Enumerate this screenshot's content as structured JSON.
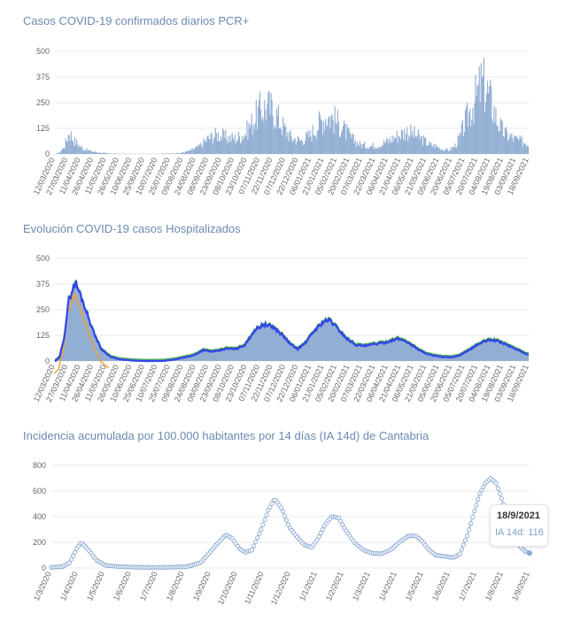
{
  "colors": {
    "title": "#6b8ab0",
    "bars": "#94b0d4",
    "hosp_area": "#93aed3",
    "hosp_uci": "#3344ee",
    "hosp_green": "#2f9e44",
    "hosp_orange": "#f0a030",
    "ia_line": "#8aaad2",
    "grid": "#e9e9e9"
  },
  "chart_data": [
    {
      "type": "bar",
      "title": "Casos COVID-19 confirmados diarios PCR+",
      "ylim": [
        0,
        500
      ],
      "yticks": [
        0,
        125,
        250,
        375,
        500
      ],
      "categories": [
        "12/03/2020",
        "27/03/2020",
        "11/04/2020",
        "26/04/2020",
        "11/05/2020",
        "26/05/2020",
        "10/06/2020",
        "25/06/2020",
        "10/07/2020",
        "25/07/2020",
        "09/08/2020",
        "24/08/2020",
        "08/09/2020",
        "23/09/2020",
        "08/10/2020",
        "23/10/2020",
        "07/11/2020",
        "22/11/2020",
        "07/12/2020",
        "22/12/2020",
        "06/01/2021",
        "21/01/2021",
        "05/02/2021",
        "20/02/2021",
        "07/03/2021",
        "22/03/2021",
        "06/04/2021",
        "21/04/2021",
        "06/05/2021",
        "21/05/2021",
        "05/06/2021",
        "20/06/2021",
        "05/07/2021",
        "20/07/2021",
        "04/08/2021",
        "19/08/2021",
        "03/09/2021",
        "18/09/2021"
      ],
      "anchors": [
        [
          0,
          0
        ],
        [
          5,
          8
        ],
        [
          10,
          40
        ],
        [
          15,
          110
        ],
        [
          20,
          65
        ],
        [
          25,
          45
        ],
        [
          30,
          25
        ],
        [
          40,
          12
        ],
        [
          50,
          5
        ],
        [
          60,
          2
        ],
        [
          70,
          1
        ],
        [
          90,
          1
        ],
        [
          110,
          1
        ],
        [
          120,
          2
        ],
        [
          135,
          4
        ],
        [
          145,
          15
        ],
        [
          155,
          35
        ],
        [
          165,
          75
        ],
        [
          175,
          95
        ],
        [
          185,
          80
        ],
        [
          195,
          75
        ],
        [
          205,
          100
        ],
        [
          215,
          170
        ],
        [
          222,
          220
        ],
        [
          230,
          230
        ],
        [
          238,
          200
        ],
        [
          245,
          140
        ],
        [
          255,
          80
        ],
        [
          265,
          65
        ],
        [
          275,
          90
        ],
        [
          285,
          150
        ],
        [
          293,
          185
        ],
        [
          300,
          175
        ],
        [
          310,
          130
        ],
        [
          320,
          75
        ],
        [
          330,
          45
        ],
        [
          340,
          38
        ],
        [
          350,
          45
        ],
        [
          360,
          65
        ],
        [
          370,
          90
        ],
        [
          380,
          110
        ],
        [
          390,
          90
        ],
        [
          400,
          60
        ],
        [
          405,
          45
        ],
        [
          410,
          40
        ],
        [
          415,
          30
        ],
        [
          420,
          20
        ],
        [
          425,
          18
        ],
        [
          428,
          25
        ],
        [
          432,
          40
        ],
        [
          437,
          80
        ],
        [
          442,
          140
        ],
        [
          447,
          200
        ],
        [
          452,
          250
        ],
        [
          457,
          300
        ],
        [
          460,
          340
        ],
        [
          463,
          330
        ],
        [
          467,
          300
        ],
        [
          472,
          240
        ],
        [
          477,
          170
        ],
        [
          482,
          120
        ],
        [
          487,
          95
        ],
        [
          493,
          80
        ],
        [
          500,
          65
        ],
        [
          505,
          60
        ],
        [
          511,
          50
        ]
      ],
      "n_days": 512
    },
    {
      "type": "area",
      "title": "Evolución COVID-19 casos  Hospitalizados",
      "ylim": [
        0,
        500
      ],
      "yticks": [
        0,
        125,
        250,
        375,
        500
      ],
      "categories": [
        "12/03/2020",
        "27/03/2020",
        "11/04/2020",
        "26/04/2020",
        "11/05/2020",
        "26/05/2020",
        "10/06/2020",
        "25/06/2020",
        "10/07/2020",
        "25/07/2020",
        "09/08/2020",
        "24/08/2020",
        "08/09/2020",
        "23/09/2020",
        "08/10/2020",
        "23/10/2020",
        "07/11/2020",
        "22/11/2020",
        "07/12/2020",
        "22/12/2020",
        "06/01/2021",
        "21/01/2021",
        "05/02/2021",
        "20/02/2021",
        "07/03/2021",
        "22/03/2021",
        "06/04/2021",
        "21/04/2021",
        "06/05/2021",
        "21/05/2021",
        "05/06/2021",
        "20/06/2021",
        "05/07/2021",
        "20/07/2021",
        "04/08/2021",
        "19/08/2021",
        "03/09/2021",
        "18/09/2021"
      ],
      "anchors": [
        [
          0,
          0
        ],
        [
          5,
          20
        ],
        [
          10,
          120
        ],
        [
          15,
          300
        ],
        [
          22,
          385
        ],
        [
          28,
          320
        ],
        [
          35,
          230
        ],
        [
          42,
          140
        ],
        [
          50,
          60
        ],
        [
          60,
          22
        ],
        [
          70,
          10
        ],
        [
          85,
          4
        ],
        [
          100,
          2
        ],
        [
          118,
          3
        ],
        [
          130,
          10
        ],
        [
          140,
          20
        ],
        [
          150,
          30
        ],
        [
          160,
          55
        ],
        [
          168,
          48
        ],
        [
          175,
          50
        ],
        [
          185,
          62
        ],
        [
          195,
          60
        ],
        [
          205,
          80
        ],
        [
          215,
          150
        ],
        [
          225,
          180
        ],
        [
          235,
          168
        ],
        [
          245,
          130
        ],
        [
          255,
          80
        ],
        [
          262,
          60
        ],
        [
          270,
          90
        ],
        [
          280,
          150
        ],
        [
          290,
          195
        ],
        [
          297,
          200
        ],
        [
          305,
          160
        ],
        [
          315,
          110
        ],
        [
          325,
          80
        ],
        [
          335,
          75
        ],
        [
          345,
          85
        ],
        [
          355,
          90
        ],
        [
          362,
          100
        ],
        [
          370,
          110
        ],
        [
          378,
          100
        ],
        [
          388,
          70
        ],
        [
          398,
          42
        ],
        [
          408,
          28
        ],
        [
          418,
          22
        ],
        [
          428,
          20
        ],
        [
          436,
          28
        ],
        [
          445,
          50
        ],
        [
          455,
          80
        ],
        [
          465,
          100
        ],
        [
          472,
          105
        ],
        [
          480,
          95
        ],
        [
          490,
          75
        ],
        [
          500,
          55
        ],
        [
          506,
          40
        ],
        [
          511,
          32
        ]
      ],
      "n_days": 512
    },
    {
      "type": "line",
      "title": "Incidencia acumulada por 100.000 habitantes por 14 días (IA 14d) de Cantabria",
      "ylim": [
        0,
        800
      ],
      "yticks": [
        0,
        200,
        400,
        600,
        800
      ],
      "categories": [
        "1/3/2020",
        "1/4/2020",
        "1/5/2020",
        "1/6/2020",
        "1/7/2020",
        "1/8/2020",
        "1/9/2020",
        "1/10/2020",
        "1/11/2020",
        "1/12/2020",
        "1/1/2021",
        "1/2/2021",
        "1/3/2021",
        "1/4/2021",
        "1/5/2021",
        "1/6/2021",
        "1/7/2021",
        "1/8/2021",
        "1/9/2021"
      ],
      "anchors": [
        [
          0,
          5
        ],
        [
          12,
          10
        ],
        [
          20,
          40
        ],
        [
          28,
          150
        ],
        [
          33,
          200
        ],
        [
          40,
          150
        ],
        [
          50,
          60
        ],
        [
          60,
          20
        ],
        [
          75,
          10
        ],
        [
          100,
          5
        ],
        [
          130,
          5
        ],
        [
          150,
          10
        ],
        [
          165,
          40
        ],
        [
          175,
          120
        ],
        [
          185,
          200
        ],
        [
          193,
          260
        ],
        [
          200,
          230
        ],
        [
          208,
          150
        ],
        [
          215,
          120
        ],
        [
          222,
          140
        ],
        [
          232,
          300
        ],
        [
          240,
          450
        ],
        [
          247,
          540
        ],
        [
          255,
          460
        ],
        [
          263,
          320
        ],
        [
          272,
          240
        ],
        [
          280,
          180
        ],
        [
          288,
          160
        ],
        [
          295,
          230
        ],
        [
          303,
          340
        ],
        [
          310,
          400
        ],
        [
          318,
          390
        ],
        [
          325,
          300
        ],
        [
          335,
          200
        ],
        [
          345,
          140
        ],
        [
          355,
          115
        ],
        [
          365,
          110
        ],
        [
          375,
          140
        ],
        [
          385,
          200
        ],
        [
          395,
          250
        ],
        [
          403,
          250
        ],
        [
          410,
          210
        ],
        [
          418,
          140
        ],
        [
          425,
          100
        ],
        [
          435,
          90
        ],
        [
          445,
          80
        ],
        [
          452,
          110
        ],
        [
          460,
          250
        ],
        [
          467,
          420
        ],
        [
          474,
          580
        ],
        [
          480,
          660
        ],
        [
          486,
          700
        ],
        [
          492,
          660
        ],
        [
          498,
          540
        ],
        [
          505,
          380
        ],
        [
          512,
          250
        ],
        [
          518,
          170
        ],
        [
          524,
          130
        ],
        [
          529,
          116
        ]
      ],
      "n_days": 530,
      "tooltip": {
        "date": "18/9/2021",
        "label": "IA 14d: 116"
      }
    }
  ]
}
